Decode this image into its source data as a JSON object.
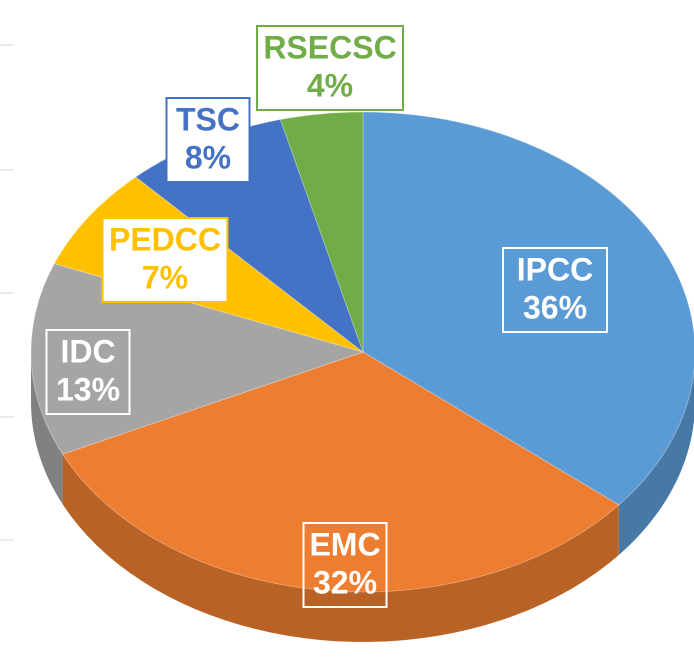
{
  "chart_data": {
    "type": "pie",
    "categories": [
      "IPCC",
      "EMC",
      "IDC",
      "PEDCC",
      "TSC",
      "RSECSC"
    ],
    "values": [
      36,
      32,
      13,
      7,
      8,
      4
    ],
    "value_labels": [
      "36%",
      "32%",
      "13%",
      "7%",
      "8%",
      "4%"
    ],
    "colors": [
      "#5b9bd5",
      "#ed7d31",
      "#a5a5a5",
      "#ffc000",
      "#4472c4",
      "#70ad47"
    ]
  }
}
